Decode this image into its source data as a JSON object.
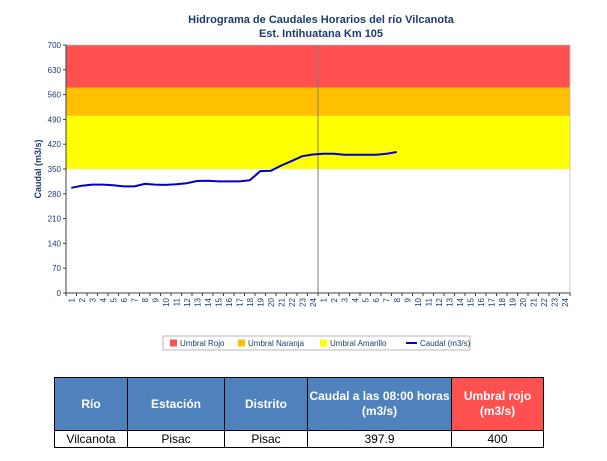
{
  "chart_data": {
    "type": "line",
    "title": "Hidrograma de Caudales Horarios del río Vilcanota",
    "subtitle": "Est. Intihuatana Km 105",
    "ylabel": "Caudal  (m3/s)",
    "ylim": [
      0,
      700
    ],
    "yticks": [
      0,
      70,
      140,
      210,
      280,
      350,
      420,
      490,
      560,
      630,
      700
    ],
    "x_labels": [
      "1",
      "2",
      "3",
      "4",
      "5",
      "6",
      "7",
      "8",
      "9",
      "10",
      "11",
      "12",
      "13",
      "14",
      "15",
      "16",
      "17",
      "18",
      "19",
      "20",
      "21",
      "22",
      "23",
      "24",
      "1",
      "2",
      "3",
      "4",
      "5",
      "6",
      "7",
      "8",
      "9",
      "10",
      "11",
      "12",
      "13",
      "14",
      "15",
      "16",
      "17",
      "18",
      "19",
      "20",
      "21",
      "22",
      "23",
      "24"
    ],
    "day_divider_after_index": 24,
    "thresholds": [
      {
        "name": "Umbral Amarillo",
        "from": 350,
        "to": 500,
        "color": "#ffff00"
      },
      {
        "name": "Umbral Naranja",
        "from": 500,
        "to": 580,
        "color": "#ffc000"
      },
      {
        "name": "Umbral Rojo",
        "from": 580,
        "to": 700,
        "color": "#ff5050"
      }
    ],
    "series": [
      {
        "name": "Caudal (m3/s)",
        "color": "#0000cc",
        "values": [
          297,
          303,
          306,
          306,
          304,
          301,
          301,
          308,
          306,
          305,
          307,
          310,
          316,
          317,
          315,
          315,
          315,
          318,
          344,
          345,
          360,
          373,
          386,
          391,
          393,
          393,
          390,
          390,
          390,
          390,
          393,
          397.9
        ]
      }
    ],
    "legend": {
      "position": "bottom",
      "items": [
        {
          "label": "Umbral Rojo",
          "color": "#ff5050",
          "kind": "box"
        },
        {
          "label": "Umbral Naranja",
          "color": "#ffc000",
          "kind": "box"
        },
        {
          "label": "Umbral Amarillo",
          "color": "#ffff00",
          "kind": "box"
        },
        {
          "label": "Caudal (m3/s)",
          "color": "#0000cc",
          "kind": "line"
        }
      ]
    },
    "grid": false
  },
  "table": {
    "headers": {
      "rio": "Río",
      "estacion": "Estación",
      "distrito": "Distrito",
      "caudal": "Caudal a las 08:00 horas (m3/s)",
      "umbral": "Umbral rojo (m3/s)"
    },
    "row": {
      "rio": "Vilcanota",
      "estacion": "Pisac",
      "distrito": "Pisac",
      "caudal": "397.9",
      "umbral": "400"
    }
  }
}
